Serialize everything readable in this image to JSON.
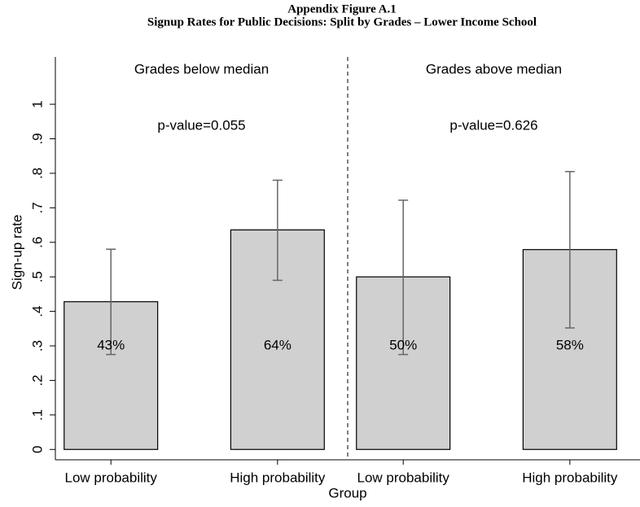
{
  "chart_data": [
    {
      "type": "bar",
      "title": [
        "Appendix Figure A.1",
        "Signup Rates for Public Decisions: Split by Grades – Lower Income School"
      ],
      "ylabel": "Sign-up rate",
      "xlabel": "Group",
      "ylim": [
        -0.03,
        1.137
      ],
      "yticks": [
        0,
        {
          "value": 0.1,
          "label": ".1"
        },
        {
          "value": 0.2,
          "label": ".2"
        },
        {
          "value": 0.3,
          "label": ".3"
        },
        {
          "value": 0.4,
          "label": ".4"
        },
        {
          "value": 0.5,
          "label": ".5"
        },
        {
          "value": 0.6,
          "label": ".6"
        },
        {
          "value": 0.7,
          "label": ".7"
        },
        {
          "value": 0.8,
          "label": ".8"
        },
        {
          "value": 0.9,
          "label": ".9"
        },
        1
      ],
      "subtitle": "Grades below median",
      "annotation": "p-value=0.055",
      "categories": [
        "Low probability",
        "High probability"
      ],
      "values": [
        0.428,
        0.636
      ],
      "value_labels": [
        "43%",
        "64%"
      ],
      "ci_low": [
        0.275,
        0.49
      ],
      "ci_high": [
        0.58,
        0.78
      ],
      "color": "#d0d0d0",
      "error_color": "#666666"
    },
    {
      "type": "bar",
      "subtitle": "Grades above median",
      "annotation": "p-value=0.626",
      "categories": [
        "Low probability",
        "High probability"
      ],
      "values": [
        0.5,
        0.579
      ],
      "value_labels": [
        "50%",
        "58%"
      ],
      "ci_low": [
        0.275,
        0.352
      ],
      "ci_high": [
        0.722,
        0.805
      ],
      "color": "#d0d0d0",
      "error_color": "#666666"
    }
  ]
}
